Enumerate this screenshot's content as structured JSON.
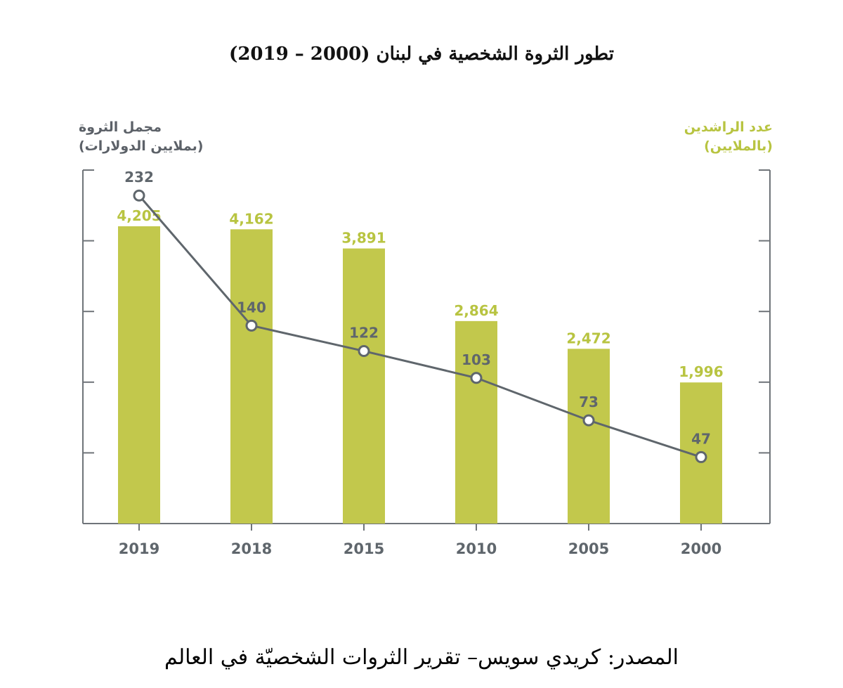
{
  "title": "تطور الثروة الشخصية في لبنان (2000 – 2019)",
  "source": "المصدر: كريدي سويس– تقرير الثروات الشخصيّة في العالم",
  "colors": {
    "bars": "#c2c84c",
    "bar_labels": "#b8c441",
    "line": "#5f666c",
    "axis": "#6f7479",
    "tick_labels": "#5f666c"
  },
  "chart_data": {
    "type": "bar",
    "categories": [
      "2019",
      "2018",
      "2015",
      "2010",
      "2005",
      "2000"
    ],
    "left_axis_title": [
      "مجمل الثروة",
      "(بملايين الدولارات)"
    ],
    "right_axis_title": [
      "عدد الراشدين",
      "(بالملايين)"
    ],
    "series": [
      {
        "name": "عدد الراشدين",
        "type": "bar",
        "axis": "right",
        "values": [
          4205,
          4162,
          3891,
          2864,
          2472,
          1996
        ],
        "labels": [
          "4,205",
          "4,162",
          "3,891",
          "2,864",
          "2,472",
          "1,996"
        ]
      },
      {
        "name": "مجمل الثروة",
        "type": "line",
        "axis": "left",
        "values": [
          232,
          140,
          122,
          103,
          73,
          47
        ],
        "labels": [
          "232",
          "140",
          "122",
          "103",
          "73",
          "47"
        ]
      }
    ],
    "left_ylim": [
      0,
      250
    ],
    "right_ylim": [
      0,
      5000
    ],
    "grid": false
  }
}
